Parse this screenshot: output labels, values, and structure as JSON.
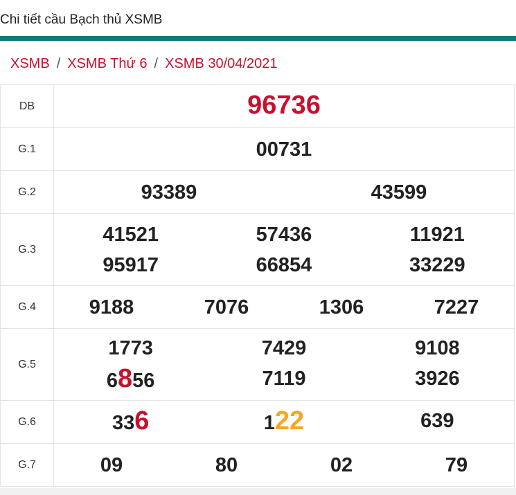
{
  "header": {
    "title": "Chi tiết cầu Bạch thủ XSMB"
  },
  "breadcrumb": {
    "items": [
      "XSMB",
      "XSMB Thứ 6",
      "XSMB 30/04/2021"
    ],
    "separator": "/"
  },
  "table": {
    "rows": [
      {
        "label": "DB",
        "columns": 1,
        "numbers": [
          [
            {
              "text": "96736",
              "color": "#c8102e"
            }
          ]
        ]
      },
      {
        "label": "G.1",
        "columns": 1,
        "numbers": [
          [
            {
              "text": "00731"
            }
          ]
        ]
      },
      {
        "label": "G.2",
        "columns": 2,
        "numbers": [
          [
            {
              "text": "93389"
            }
          ],
          [
            {
              "text": "43599"
            }
          ]
        ]
      },
      {
        "label": "G.3",
        "columns": 3,
        "numbers": [
          [
            {
              "text": "41521"
            }
          ],
          [
            {
              "text": "57436"
            }
          ],
          [
            {
              "text": "11921"
            }
          ],
          [
            {
              "text": "95917"
            }
          ],
          [
            {
              "text": "66854"
            }
          ],
          [
            {
              "text": "33229"
            }
          ]
        ]
      },
      {
        "label": "G.4",
        "columns": 4,
        "numbers": [
          [
            {
              "text": "9188"
            }
          ],
          [
            {
              "text": "7076"
            }
          ],
          [
            {
              "text": "1306"
            }
          ],
          [
            {
              "text": "7227"
            }
          ]
        ]
      },
      {
        "label": "G.5",
        "columns": 3,
        "numbers": [
          [
            {
              "text": "1773"
            }
          ],
          [
            {
              "text": "7429"
            }
          ],
          [
            {
              "text": "9108"
            }
          ],
          [
            {
              "text": "6"
            },
            {
              "text": "8",
              "color": "#c8102e"
            },
            {
              "text": "56"
            }
          ],
          [
            {
              "text": "7119"
            }
          ],
          [
            {
              "text": "3926"
            }
          ]
        ]
      },
      {
        "label": "G.6",
        "columns": 3,
        "numbers": [
          [
            {
              "text": "33"
            },
            {
              "text": "6",
              "color": "#c8102e"
            }
          ],
          [
            {
              "text": "1"
            },
            {
              "text": "22",
              "color": "#f5a623"
            }
          ],
          [
            {
              "text": "639"
            }
          ]
        ]
      },
      {
        "label": "G.7",
        "columns": 4,
        "numbers": [
          [
            {
              "text": "09"
            }
          ],
          [
            {
              "text": "80"
            }
          ],
          [
            {
              "text": "02"
            }
          ],
          [
            {
              "text": "79"
            }
          ]
        ]
      }
    ]
  }
}
